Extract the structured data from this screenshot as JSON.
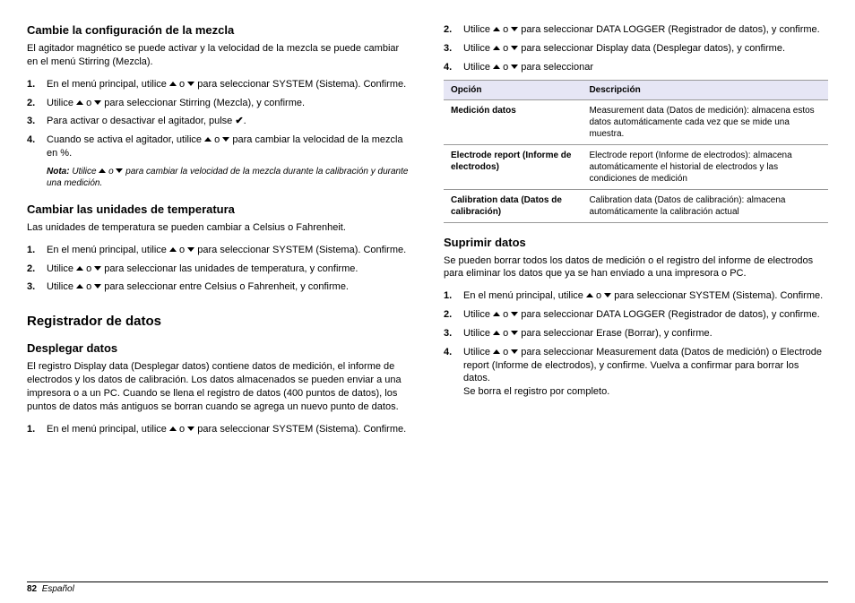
{
  "left": {
    "h_mix": "Cambie la configuración de la mezcla",
    "p_mix": "El agitador magnético se puede activar y la velocidad de la mezcla se puede cambiar en el menú Stirring (Mezcla).",
    "mix_steps": {
      "s1a": "En el menú principal, utilice ",
      "s1b": " o ",
      "s1c": " para seleccionar SYSTEM (Sistema). Confirme.",
      "s2a": "Utilice ",
      "s2b": " o ",
      "s2c": " para seleccionar Stirring (Mezcla), y confirme.",
      "s3a": "Para activar o desactivar el agitador, pulse ",
      "s3b": ".",
      "s4a": "Cuando se activa el agitador, utilice ",
      "s4b": " o ",
      "s4c": " para cambiar la velocidad de la mezcla en %."
    },
    "note_label": "Nota:",
    "note_a": " Utilice ",
    "note_b": " o ",
    "note_c": " para cambiar la velocidad de la mezcla durante la calibración y durante una medición.",
    "h_temp": "Cambiar las unidades de temperatura",
    "p_temp": "Las unidades de temperatura se pueden cambiar a Celsius o Fahrenheit.",
    "temp_steps": {
      "s1a": "En el menú principal, utilice ",
      "s1b": " o ",
      "s1c": " para seleccionar SYSTEM (Sistema). Confirme.",
      "s2a": "Utilice ",
      "s2b": " o ",
      "s2c": " para seleccionar las unidades de temperatura, y confirme.",
      "s3a": "Utilice ",
      "s3b": " o ",
      "s3c": " para seleccionar entre Celsius o Fahrenheit, y confirme."
    },
    "h_logger": "Registrador de datos",
    "h_display": "Desplegar datos",
    "p_display": "El registro Display data (Desplegar datos) contiene datos de medición, el informe de electrodos y los datos de calibración. Los datos almacenados se pueden enviar a una impresora o a un PC. Cuando se llena el registro de datos (400 puntos de datos), los puntos de datos más antiguos se borran cuando se agrega un nuevo punto de datos.",
    "disp_steps": {
      "s1a": "En el menú principal, utilice ",
      "s1b": " o ",
      "s1c": " para seleccionar SYSTEM (Sistema). Confirme."
    }
  },
  "right": {
    "disp_cont": {
      "s2a": "Utilice ",
      "s2b": " o ",
      "s2c": " para seleccionar DATA LOGGER (Registrador de datos), y confirme.",
      "s3a": "Utilice ",
      "s3b": " o ",
      "s3c": " para seleccionar Display data (Desplegar datos), y confirme.",
      "s4a": "Utilice ",
      "s4b": " o ",
      "s4c": " para seleccionar"
    },
    "table": {
      "h1": "Opción",
      "h2": "Descripción",
      "r1c1": "Medición datos",
      "r1c2": "Measurement data (Datos de medición): almacena estos datos automáticamente cada vez que se mide una muestra.",
      "r2c1": "Electrode report (Informe de electrodos)",
      "r2c2": "Electrode report (Informe de electrodos): almacena automáticamente el historial de electrodos y las condiciones de medición",
      "r3c1": "Calibration data (Datos de calibración)",
      "r3c2": "Calibration data (Datos de calibración): almacena automáticamente la calibración actual"
    },
    "h_delete": "Suprimir datos",
    "p_delete": "Se pueden borrar todos los datos de medición o el registro del informe de electrodos para eliminar los datos que ya se han enviado a una impresora o PC.",
    "del_steps": {
      "s1a": "En el menú principal, utilice ",
      "s1b": " o ",
      "s1c": " para seleccionar SYSTEM (Sistema). Confirme.",
      "s2a": "Utilice ",
      "s2b": " o ",
      "s2c": " para seleccionar DATA LOGGER (Registrador de datos), y confirme.",
      "s3a": "Utilice ",
      "s3b": " o ",
      "s3c": " para seleccionar Erase (Borrar), y confirme.",
      "s4a": "Utilice ",
      "s4b": " o ",
      "s4c": " para seleccionar Measurement data (Datos de medición) o Electrode report (Informe de electrodos), y confirme. Vuelva a confirmar para borrar los datos.",
      "s4d": "Se borra el registro por completo."
    }
  },
  "footer": {
    "page": "82",
    "lang": "Español"
  },
  "icons": {
    "check": "✔"
  }
}
